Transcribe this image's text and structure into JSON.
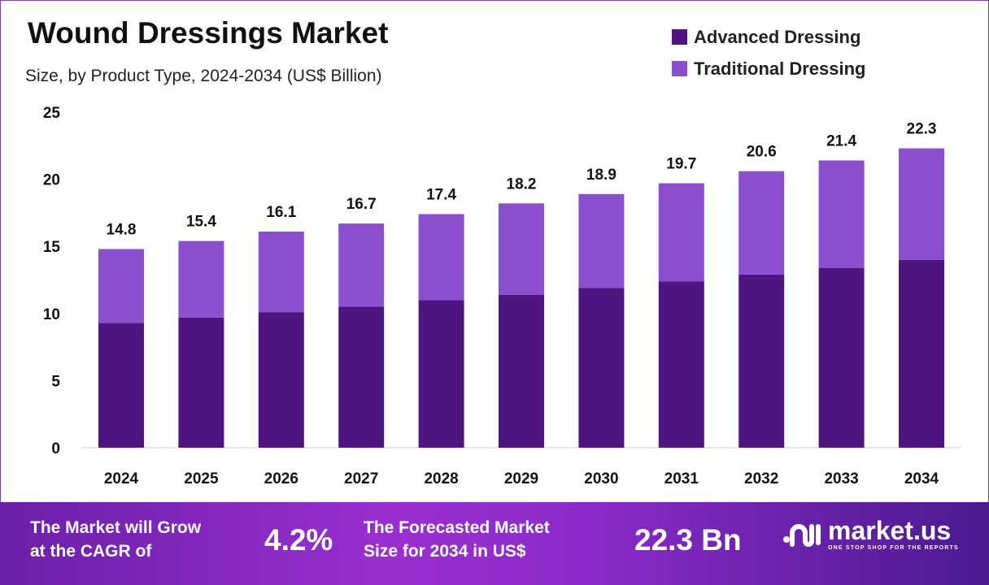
{
  "chart_data": {
    "type": "bar",
    "stacked": true,
    "title": "Wound Dressings Market",
    "subtitle": "Size, by Product Type, 2024-2034 (US$ Billion)",
    "categories": [
      "2024",
      "2025",
      "2026",
      "2027",
      "2028",
      "2029",
      "2030",
      "2031",
      "2032",
      "2033",
      "2034"
    ],
    "series": [
      {
        "name": "Advanced Dressing",
        "color": "#4e1580",
        "values": [
          9.3,
          9.7,
          10.1,
          10.5,
          11.0,
          11.4,
          11.9,
          12.4,
          12.9,
          13.4,
          14.0
        ]
      },
      {
        "name": "Traditional Dressing",
        "color": "#8b4fce",
        "values": [
          5.5,
          5.7,
          6.0,
          6.2,
          6.4,
          6.8,
          7.0,
          7.3,
          7.7,
          8.0,
          8.3
        ]
      }
    ],
    "totals": [
      "14.8",
      "15.4",
      "16.1",
      "16.7",
      "17.4",
      "18.2",
      "18.9",
      "19.7",
      "20.6",
      "21.4",
      "22.3"
    ],
    "yticks": [
      "0",
      "5",
      "10",
      "15",
      "20",
      "25"
    ],
    "ylim": [
      0,
      25
    ],
    "grid": false,
    "legend_position": "top-right"
  },
  "footer": {
    "cagr_text": "The Market will Grow at the CAGR of",
    "cagr_line1": "The Market will Grow",
    "cagr_line2": "at the CAGR of",
    "cagr_value": "4.2%",
    "forecast_line1": "The Forecasted Market",
    "forecast_line2": "Size for 2034 in US$",
    "forecast_value": "22.3 Bn",
    "logo_name": "market.us",
    "logo_tagline": "ONE STOP SHOP FOR THE REPORTS"
  }
}
